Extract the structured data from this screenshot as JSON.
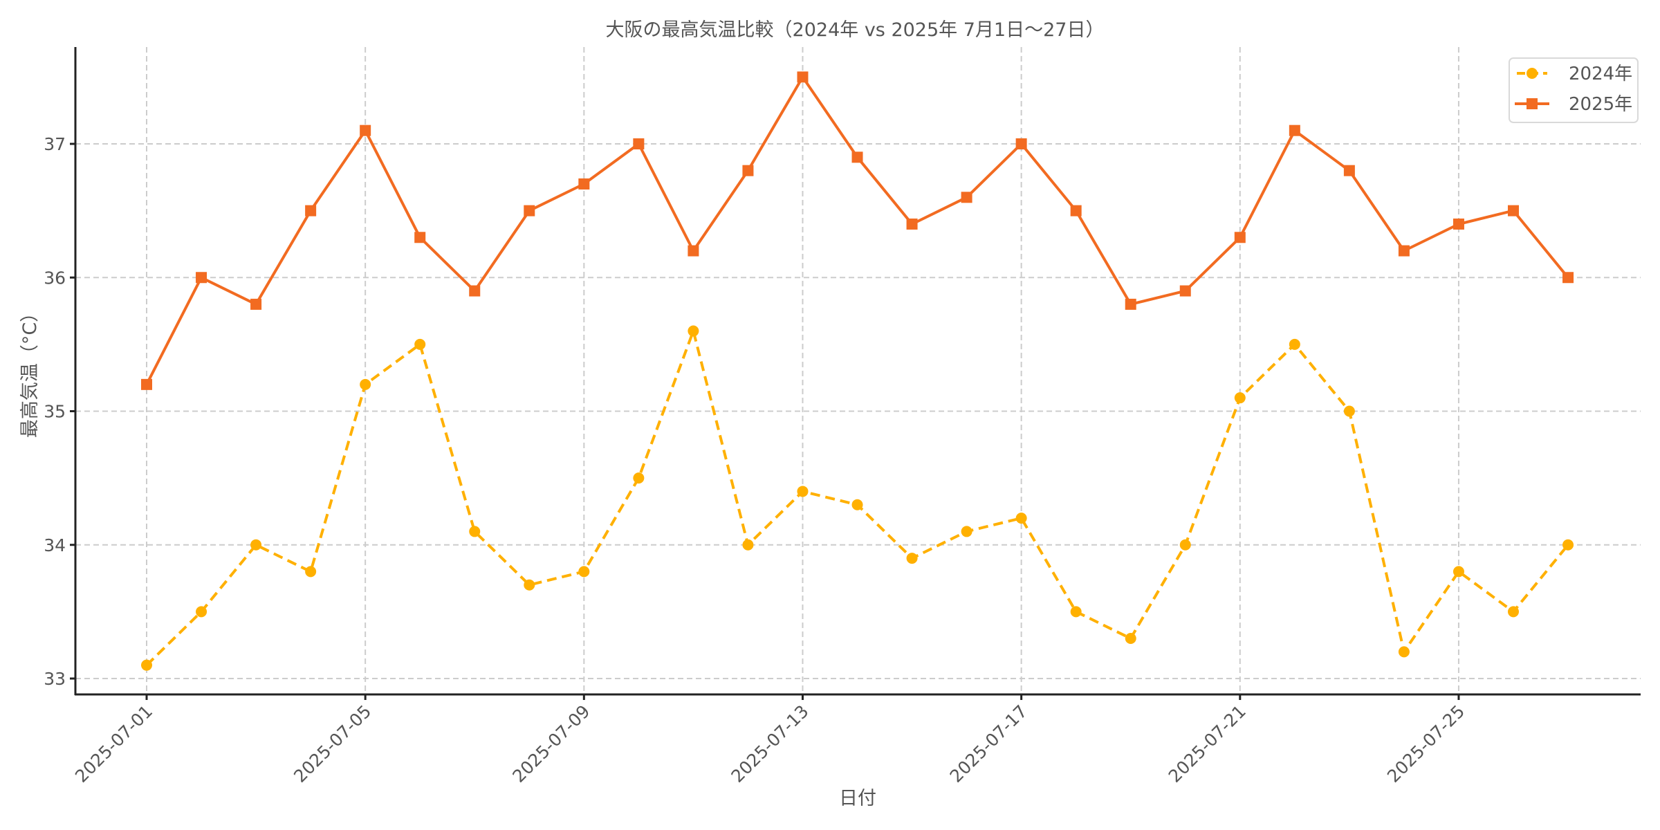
{
  "chart_data": {
    "type": "line",
    "title": "大阪の最高気温比較（2024年 vs 2025年 7月1日〜27日）",
    "xlabel": "日付",
    "ylabel": "最高気温（°C）",
    "x": [
      "2025-07-01",
      "2025-07-02",
      "2025-07-03",
      "2025-07-04",
      "2025-07-05",
      "2025-07-06",
      "2025-07-07",
      "2025-07-08",
      "2025-07-09",
      "2025-07-10",
      "2025-07-11",
      "2025-07-12",
      "2025-07-13",
      "2025-07-14",
      "2025-07-15",
      "2025-07-16",
      "2025-07-17",
      "2025-07-18",
      "2025-07-19",
      "2025-07-20",
      "2025-07-21",
      "2025-07-22",
      "2025-07-23",
      "2025-07-24",
      "2025-07-25",
      "2025-07-26",
      "2025-07-27"
    ],
    "xticks": [
      "2025-07-01",
      "2025-07-05",
      "2025-07-09",
      "2025-07-13",
      "2025-07-17",
      "2025-07-21",
      "2025-07-25"
    ],
    "yticks": [
      33,
      34,
      35,
      36,
      37
    ],
    "ylim": [
      32.88,
      37.73
    ],
    "grid": true,
    "legend_position": "upper right",
    "series": [
      {
        "name": "2024年",
        "color": "#FFB000",
        "line_style": "dashed",
        "marker": "circle",
        "values": [
          33.1,
          33.5,
          34.0,
          33.8,
          35.2,
          35.5,
          34.1,
          33.7,
          33.8,
          34.5,
          35.6,
          34.0,
          34.4,
          34.3,
          33.9,
          34.1,
          34.2,
          33.5,
          33.3,
          34.0,
          35.1,
          35.5,
          35.0,
          33.2,
          33.8,
          33.5,
          34.0
        ]
      },
      {
        "name": "2025年",
        "color": "#F26B21",
        "line_style": "solid",
        "marker": "square",
        "values": [
          35.2,
          36.0,
          35.8,
          36.5,
          37.1,
          36.3,
          35.9,
          36.5,
          36.7,
          37.0,
          36.2,
          36.8,
          37.5,
          36.9,
          36.4,
          36.6,
          37.0,
          36.5,
          35.8,
          35.9,
          36.3,
          37.1,
          36.8,
          36.2,
          36.4,
          36.5,
          36.0
        ]
      }
    ]
  }
}
